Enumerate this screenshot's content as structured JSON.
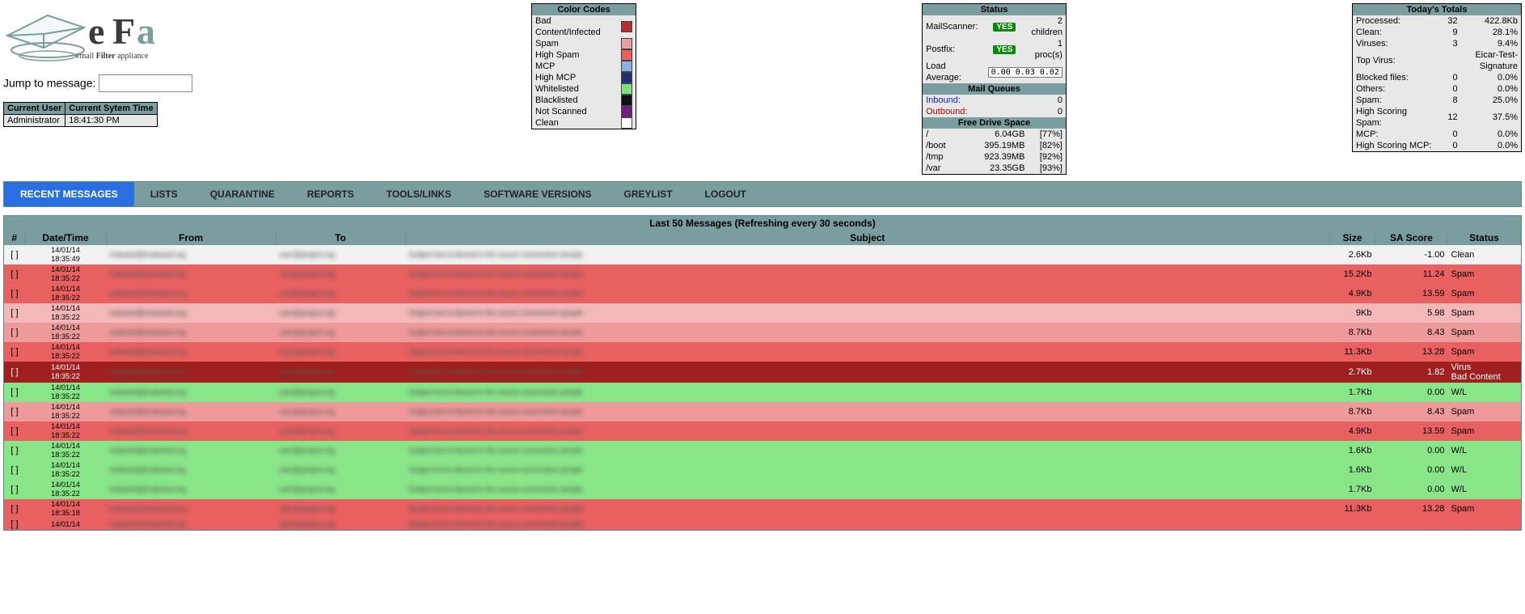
{
  "logo": {
    "tagline": "email Filter appliance"
  },
  "jump": {
    "label": "Jump to message:",
    "value": ""
  },
  "user_table": {
    "headers": [
      "Current User",
      "Current Sytem Time"
    ],
    "values": [
      "Administrator",
      "18:41:30 PM"
    ]
  },
  "color_codes": {
    "title": "Color Codes",
    "background": "#e8e8e8",
    "items": [
      {
        "label": "Bad Content/Infected",
        "color": "#b43030"
      },
      {
        "label": "Spam",
        "color": "#e8a0a0"
      },
      {
        "label": "High Spam",
        "color": "#e86060"
      },
      {
        "label": "MCP",
        "color": "#88b0e0"
      },
      {
        "label": "High MCP",
        "color": "#203070"
      },
      {
        "label": "Whitelisted",
        "color": "#80e080"
      },
      {
        "label": "Blacklisted",
        "color": "#101010"
      },
      {
        "label": "Not Scanned",
        "color": "#702080"
      },
      {
        "label": "Clean",
        "color": "#ffffff"
      }
    ]
  },
  "status_box": {
    "title": "Status",
    "background": "#e8e8e8",
    "rows": [
      {
        "label": "MailScanner:",
        "badge": "YES",
        "note": "2 children"
      },
      {
        "label": "Postfix:",
        "badge": "YES",
        "note": "1 proc(s)"
      },
      {
        "label": "Load Average:",
        "load": "0.00  0.03  0.02"
      }
    ],
    "queues_title": "Mail Queues",
    "queues": [
      {
        "label": "Inbound:",
        "link_color": "#1020c0",
        "value": "0"
      },
      {
        "label": "Outbound:",
        "link_color": "#b00000",
        "value": "0"
      }
    ],
    "drive_title": "Free Drive Space",
    "drives": [
      {
        "mount": "/",
        "free": "6.04GB",
        "pct": "[77%]"
      },
      {
        "mount": "/boot",
        "free": "395.19MB",
        "pct": "[82%]"
      },
      {
        "mount": "/tmp",
        "free": "923.39MB",
        "pct": "[92%]"
      },
      {
        "mount": "/var",
        "free": "23.35GB",
        "pct": "[93%]"
      }
    ]
  },
  "totals": {
    "title": "Today's Totals",
    "background": "#e8e8e8",
    "rows": [
      {
        "label": "Processed:",
        "c": "32",
        "v": "422.8Kb"
      },
      {
        "label": "Clean:",
        "c": "9",
        "v": "28.1%"
      },
      {
        "label": "Viruses:",
        "c": "3",
        "v": "9.4%"
      },
      {
        "label": "Top Virus:",
        "c": "",
        "v": "Eicar-Test-Signature",
        "span": true
      },
      {
        "label": "Blocked files:",
        "c": "0",
        "v": "0.0%"
      },
      {
        "label": "Others:",
        "c": "0",
        "v": "0.0%"
      },
      {
        "label": "Spam:",
        "c": "8",
        "v": "25.0%"
      },
      {
        "label": "High Scoring Spam:",
        "c": "12",
        "v": "37.5%"
      },
      {
        "label": "MCP:",
        "c": "0",
        "v": "0.0%"
      },
      {
        "label": "High Scoring MCP:",
        "c": "0",
        "v": "0.0%"
      }
    ]
  },
  "nav": {
    "items": [
      {
        "label": "RECENT MESSAGES",
        "active": true
      },
      {
        "label": "LISTS"
      },
      {
        "label": "QUARANTINE"
      },
      {
        "label": "REPORTS"
      },
      {
        "label": "TOOLS/LINKS"
      },
      {
        "label": "SOFTWARE VERSIONS"
      },
      {
        "label": "GREYLIST"
      },
      {
        "label": "LOGOUT"
      }
    ]
  },
  "messages": {
    "title": "Last 50 Messages (Refreshing every 30 seconds)",
    "columns": [
      "#",
      "Date/Time",
      "From",
      "To",
      "Subject",
      "Size",
      "SA Score",
      "Status"
    ],
    "row_colors": {
      "clean": "#f2f2f2",
      "spam_light": "#f4b8b8",
      "spam_mid": "#ef9a9a",
      "spam_dark": "#e86060",
      "virus": "#a02020",
      "wl": "#88e688"
    },
    "rows": [
      {
        "date": "14/01/14",
        "time": "18:35:49",
        "size": "2.6Kb",
        "score": "-1.00",
        "status": "Clean",
        "row": "clean"
      },
      {
        "date": "14/01/14",
        "time": "18:35:22",
        "size": "15.2Kb",
        "score": "11.24",
        "status": "Spam",
        "row": "spam_dark"
      },
      {
        "date": "14/01/14",
        "time": "18:35:22",
        "size": "4.9Kb",
        "score": "13.59",
        "status": "Spam",
        "row": "spam_dark"
      },
      {
        "date": "14/01/14",
        "time": "18:35:22",
        "size": "9Kb",
        "score": "5.98",
        "status": "Spam",
        "row": "spam_light"
      },
      {
        "date": "14/01/14",
        "time": "18:35:22",
        "size": "8.7Kb",
        "score": "8.43",
        "status": "Spam",
        "row": "spam_mid"
      },
      {
        "date": "14/01/14",
        "time": "18:35:22",
        "size": "11.3Kb",
        "score": "13.28",
        "status": "Spam",
        "row": "spam_dark"
      },
      {
        "date": "14/01/14",
        "time": "18:35:22",
        "size": "2.7Kb",
        "score": "1.82",
        "status": "Virus\nBad Content",
        "row": "virus",
        "text_color": "#ffffff"
      },
      {
        "date": "14/01/14",
        "time": "18:35:22",
        "size": "1.7Kb",
        "score": "0.00",
        "status": "W/L",
        "row": "wl"
      },
      {
        "date": "14/01/14",
        "time": "18:35:22",
        "size": "8.7Kb",
        "score": "8.43",
        "status": "Spam",
        "row": "spam_mid"
      },
      {
        "date": "14/01/14",
        "time": "18:35:22",
        "size": "4.9Kb",
        "score": "13.59",
        "status": "Spam",
        "row": "spam_dark"
      },
      {
        "date": "14/01/14",
        "time": "18:35:22",
        "size": "1.6Kb",
        "score": "0.00",
        "status": "W/L",
        "row": "wl"
      },
      {
        "date": "14/01/14",
        "time": "18:35:22",
        "size": "1.6Kb",
        "score": "0.00",
        "status": "W/L",
        "row": "wl"
      },
      {
        "date": "14/01/14",
        "time": "18:35:22",
        "size": "1.7Kb",
        "score": "0.00",
        "status": "W/L",
        "row": "wl"
      },
      {
        "date": "14/01/14",
        "time": "18:35:18",
        "size": "11.3Kb",
        "score": "13.28",
        "status": "Spam",
        "row": "spam_dark"
      },
      {
        "date": "14/01/14",
        "time": "",
        "size": "",
        "score": "",
        "status": "",
        "row": "spam_dark",
        "partial": true
      }
    ]
  }
}
